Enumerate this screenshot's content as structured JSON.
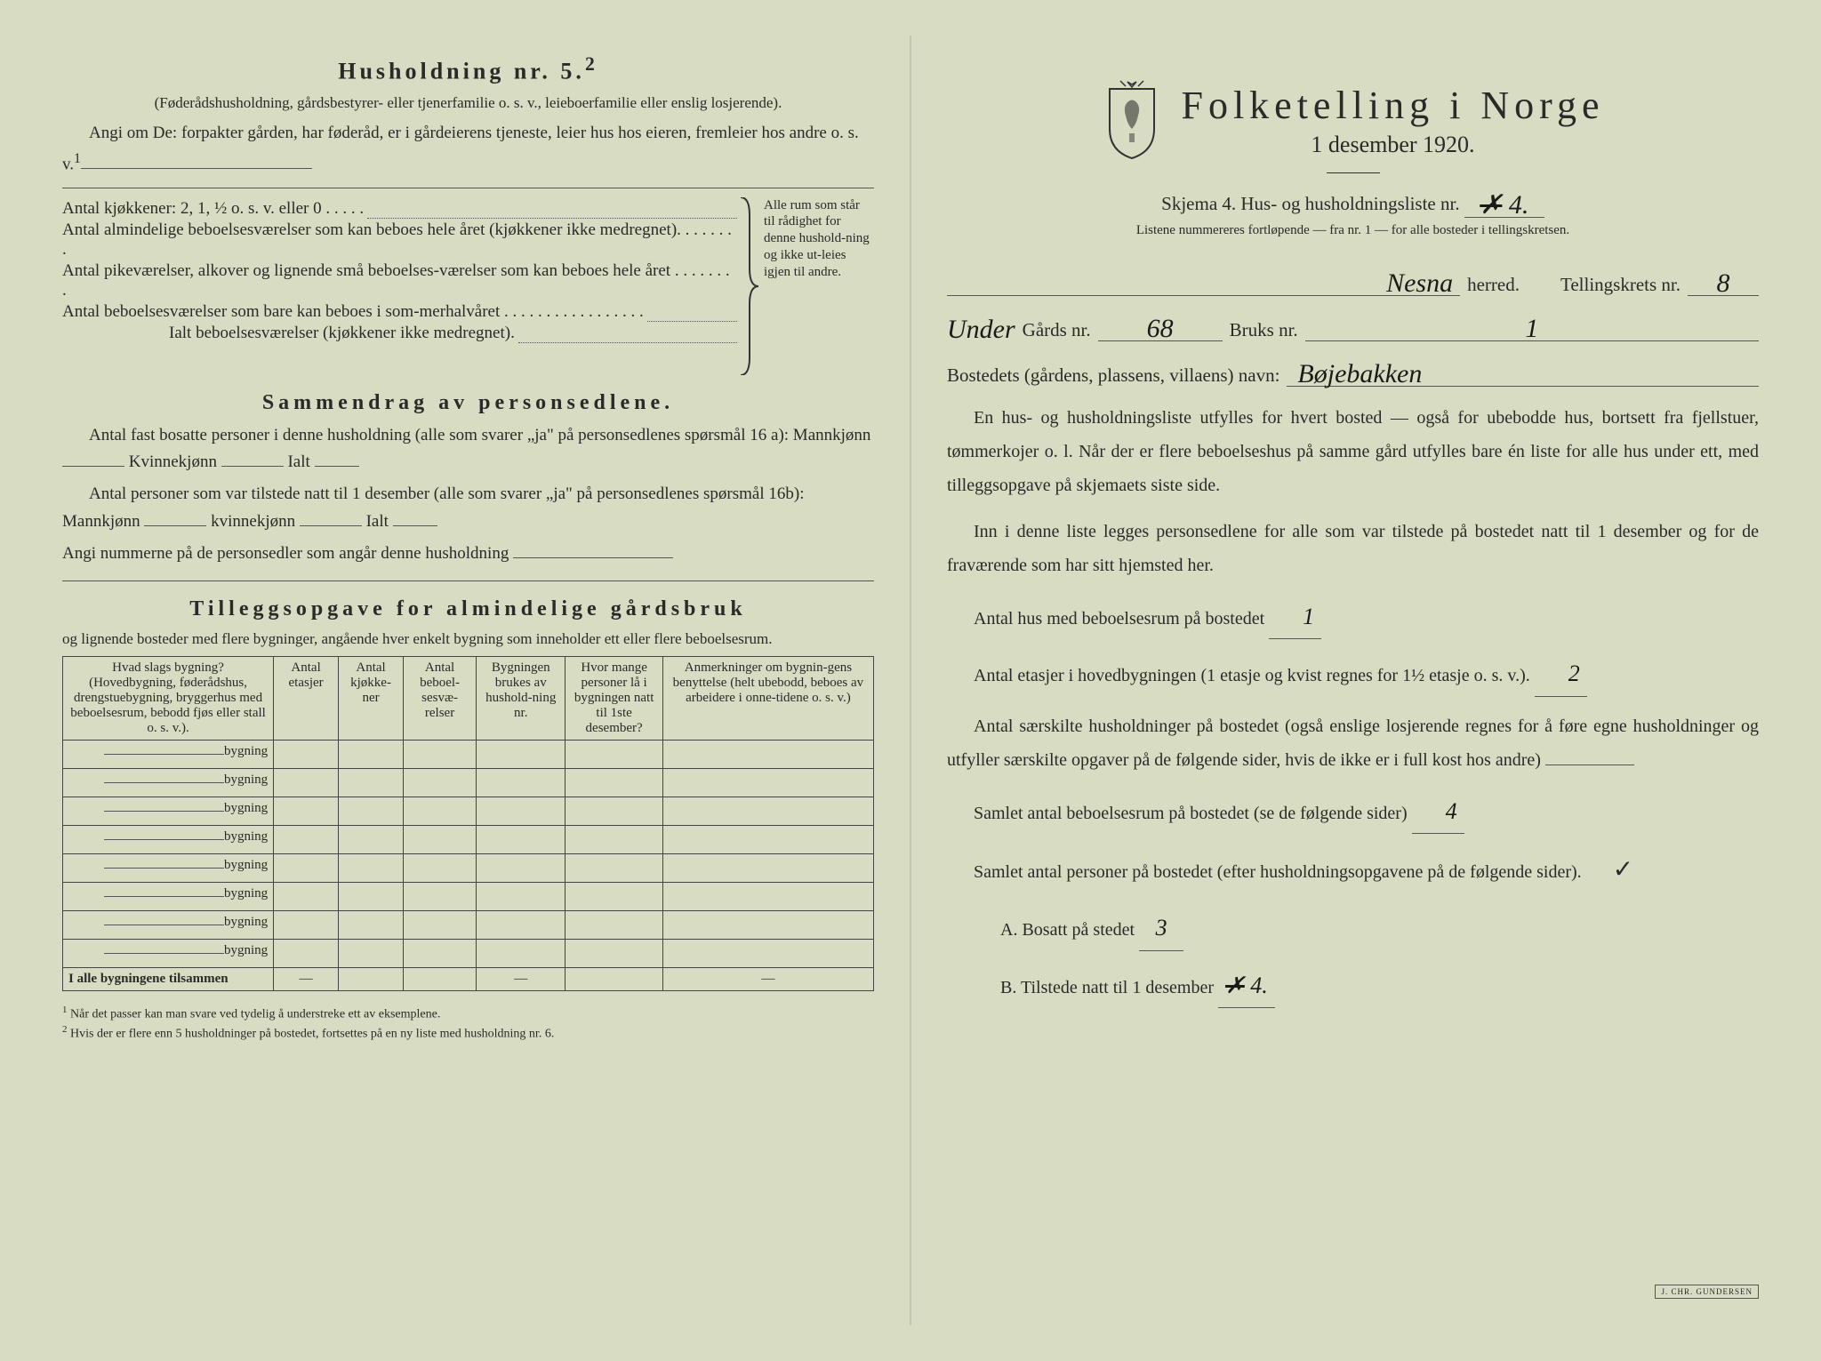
{
  "left": {
    "title": "Husholdning nr. 5.",
    "title_sup": "2",
    "intro_paren": "(Føderådshusholdning, gårdsbestyrer- eller tjenerfamilie o. s. v., leieboerfamilie eller enslig losjerende).",
    "intro_line": "Angi om De: forpakter gården, har føderåd, er i gårdeierens tjeneste, leier hus hos eieren, fremleier hos andre o. s. v.",
    "intro_sup": "1",
    "kitchens_label": "Antal kjøkkener: 2, 1, ½ o. s. v. eller 0 . . . . .",
    "rooms1": "Antal almindelige beboelsesværelser som kan beboes hele året (kjøkkener ikke medregnet). . . . . . . .",
    "rooms2": "Antal pikeværelser, alkover og lignende små beboelses-værelser som kan beboes hele året . . . . . . . .",
    "rooms3": "Antal beboelsesværelser som bare kan beboes i som-merhalvåret . . . . . . . . . . . . . . . . .",
    "rooms_total": "Ialt beboelsesværelser (kjøkkener ikke medregnet).",
    "bracket_text": "Alle rum som står til rådighet for denne hushold-ning og ikke ut-leies igjen til andre.",
    "sammendrag_title": "Sammendrag av personsedlene.",
    "sammendrag_l1": "Antal fast bosatte personer i denne husholdning (alle som svarer „ja\" på personsedlenes spørsmål 16 a): Mannkjønn",
    "kvinne": "Kvinnekjønn",
    "ialt": "Ialt",
    "sammendrag_l2": "Antal personer som var tilstede natt til 1 desember (alle som svarer „ja\" på personsedlenes spørsmål 16b): Mannkjønn",
    "kvinne2": "kvinnekjønn",
    "angi_nummer": "Angi nummerne på de personsedler som angår denne husholdning",
    "tillegg_title": "Tilleggsopgave for almindelige gårdsbruk",
    "tillegg_sub": "og lignende bosteder med flere bygninger, angående hver enkelt bygning som inneholder ett eller flere beboelsesrum.",
    "table": {
      "headers": [
        "Hvad slags bygning?\n(Hovedbygning, føderådshus, drengstuebygning, bryggerhus med beboelsesrum, bebodd fjøs eller stall o. s. v.).",
        "Antal etasjer",
        "Antal kjøkke-ner",
        "Antal beboel-sesvæ-relser",
        "Bygningen brukes av hushold-ning nr.",
        "Hvor mange personer lå i bygningen natt til 1ste desember?",
        "Anmerkninger om bygnin-gens benyttelse (helt ubebodd, beboes av arbeidere i onne-tidene o. s. v.)"
      ],
      "bygning_label": "bygning",
      "row_count": 8,
      "footer": "I alle bygningene tilsammen"
    },
    "footnotes": [
      "Når det passer kan man svare ved tydelig å understreke ett av eksemplene.",
      "Hvis der er flere enn 5 husholdninger på bostedet, fortsettes på en ny liste med husholdning nr. 6."
    ]
  },
  "right": {
    "main_title": "Folketelling i Norge",
    "date": "1 desember 1920.",
    "skjema": "Skjema 4.  Hus- og husholdningsliste nr.",
    "list_nr": "4.",
    "list_nr_strike": true,
    "listene_note": "Listene nummereres fortløpende — fra nr. 1 — for alle bosteder i tellingskretsen.",
    "herred_value": "Nesna",
    "herred_label": "herred.",
    "tellingskrets_label": "Tellingskrets nr.",
    "tellingskrets_value": "8",
    "under_label": "Under",
    "gards_label": "Gårds nr.",
    "gards_value": "68",
    "bruks_label": "Bruks nr.",
    "bruks_value": "1",
    "bosted_label": "Bostedets (gårdens, plassens, villaens) navn:",
    "bosted_value": "Bøjebakken",
    "para1": "En hus- og husholdningsliste utfylles for hvert bosted — også for ubebodde hus, bortsett fra fjellstuer, tømmerkojer o. l. Når der er flere beboelseshus på samme gård utfylles bare én liste for alle hus under ett, med tilleggsopgave på skjemaets siste side.",
    "para2": "Inn i denne liste legges personsedlene for alle som var tilstede på bostedet natt til 1 desember og for de fraværende som har sitt hjemsted her.",
    "antal_hus_label": "Antal hus med beboelsesrum på bostedet",
    "antal_hus_value": "1",
    "antal_etasjer_label": "Antal etasjer i hovedbygningen (1 etasje og kvist regnes for 1½ etasje o. s. v.).",
    "antal_etasjer_value": "2",
    "saerskilte_para": "Antal særskilte husholdninger på bostedet (også enslige losjerende regnes for å føre egne husholdninger og utfyller særskilte opgaver på de følgende sider, hvis de ikke er i full kost hos andre)",
    "samlet_beboelse_label": "Samlet antal beboelsesrum på bostedet (se de følgende sider)",
    "samlet_beboelse_value": "4",
    "samlet_personer_label": "Samlet antal personer på bostedet (efter husholdningsopgavene på de følgende sider).",
    "check": "✓",
    "a_label": "A.  Bosatt på stedet",
    "a_value": "3",
    "b_label": "B.  Tilstede natt til 1 desember",
    "b_value": "4.",
    "stamp": "J. CHR. GUNDERSEN"
  },
  "colors": {
    "bg": "#d8dcc3",
    "text": "#2a2a28",
    "line": "#555555"
  }
}
